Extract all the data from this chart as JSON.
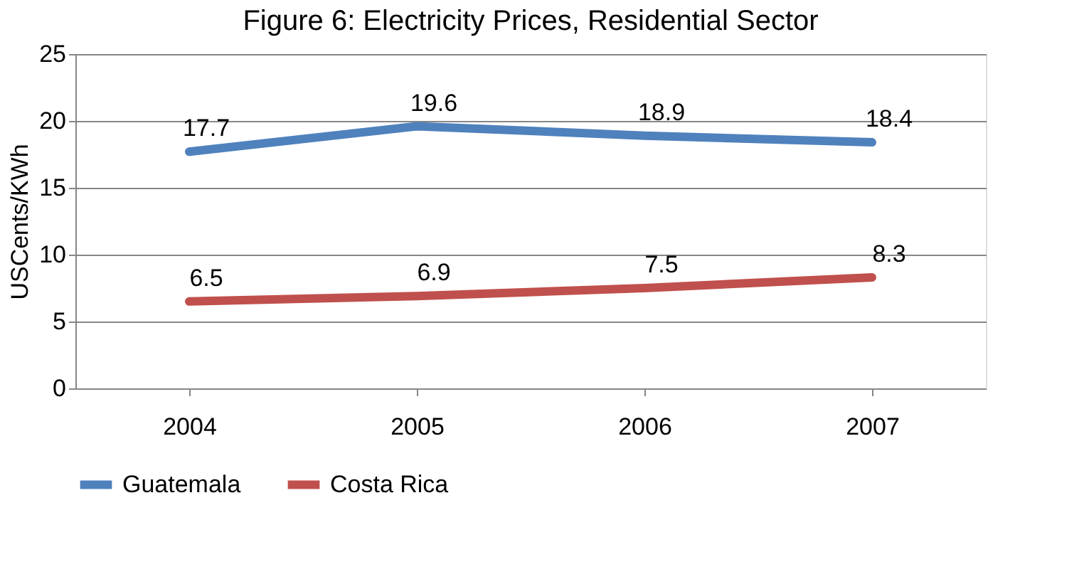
{
  "chart_data": {
    "type": "line",
    "title": "Figure 6: Electricity Prices, Residential Sector",
    "ylabel": "USCents/KWh",
    "categories": [
      "2004",
      "2005",
      "2006",
      "2007"
    ],
    "series": [
      {
        "name": "Guatemala",
        "color": "#4f81bd",
        "values": [
          17.7,
          19.6,
          18.9,
          18.4
        ]
      },
      {
        "name": "Costa Rica",
        "color": "#c0504d",
        "values": [
          6.5,
          6.9,
          7.5,
          8.3
        ]
      }
    ],
    "ylim": [
      0,
      25
    ],
    "yticks": [
      0,
      5,
      10,
      15,
      20,
      25
    ],
    "grid": "y",
    "legend": "bottom",
    "data_labels": true,
    "marker": "none",
    "line_style": "solid"
  }
}
